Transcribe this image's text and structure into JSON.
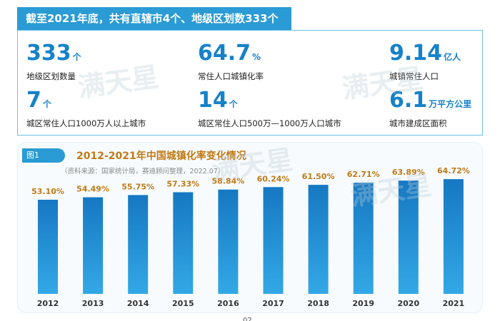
{
  "banner": {
    "title": "截至2021年底，共有直辖市4个、地级区划数333个"
  },
  "stats": [
    {
      "value": "333",
      "unit": "个",
      "label": "地级区划数量"
    },
    {
      "value": "64.7",
      "unit": "%",
      "label": "常住人口城镇化率"
    },
    {
      "value": "9.14",
      "unit": "亿人",
      "label": "城镇常住人口"
    },
    {
      "value": "7",
      "unit": "个",
      "label": "城区常住人口1000万人以上城市"
    },
    {
      "value": "14",
      "unit": "个",
      "label": "城区常住人口500万—1000万人口城市"
    },
    {
      "value": "6.1",
      "unit": "万平方公里",
      "label": "城市建成区面积"
    }
  ],
  "figure": {
    "tag": "图1",
    "title": "2012-2021年中国城镇化率变化情况",
    "source": "（资料来源：国家统计局，赛迪顾问整理，2022.07）"
  },
  "watermark": {
    "text": "满天星"
  },
  "page_number": "02",
  "chart_data": {
    "type": "bar",
    "categories": [
      "2012",
      "2013",
      "2014",
      "2015",
      "2016",
      "2017",
      "2018",
      "2019",
      "2020",
      "2021"
    ],
    "values": [
      53.1,
      54.49,
      55.75,
      57.33,
      58.84,
      60.24,
      61.5,
      62.71,
      63.89,
      64.72
    ],
    "value_labels": [
      "53.10%",
      "54.49%",
      "55.75%",
      "57.33%",
      "58.84%",
      "60.24%",
      "61.50%",
      "62.71%",
      "63.89%",
      "64.72%"
    ],
    "title": "2012-2021年中国城镇化率变化情况",
    "ylim": [
      0,
      70
    ],
    "bar_color": "#1d8ad0",
    "label_color": "#c07a16",
    "grid": false
  }
}
